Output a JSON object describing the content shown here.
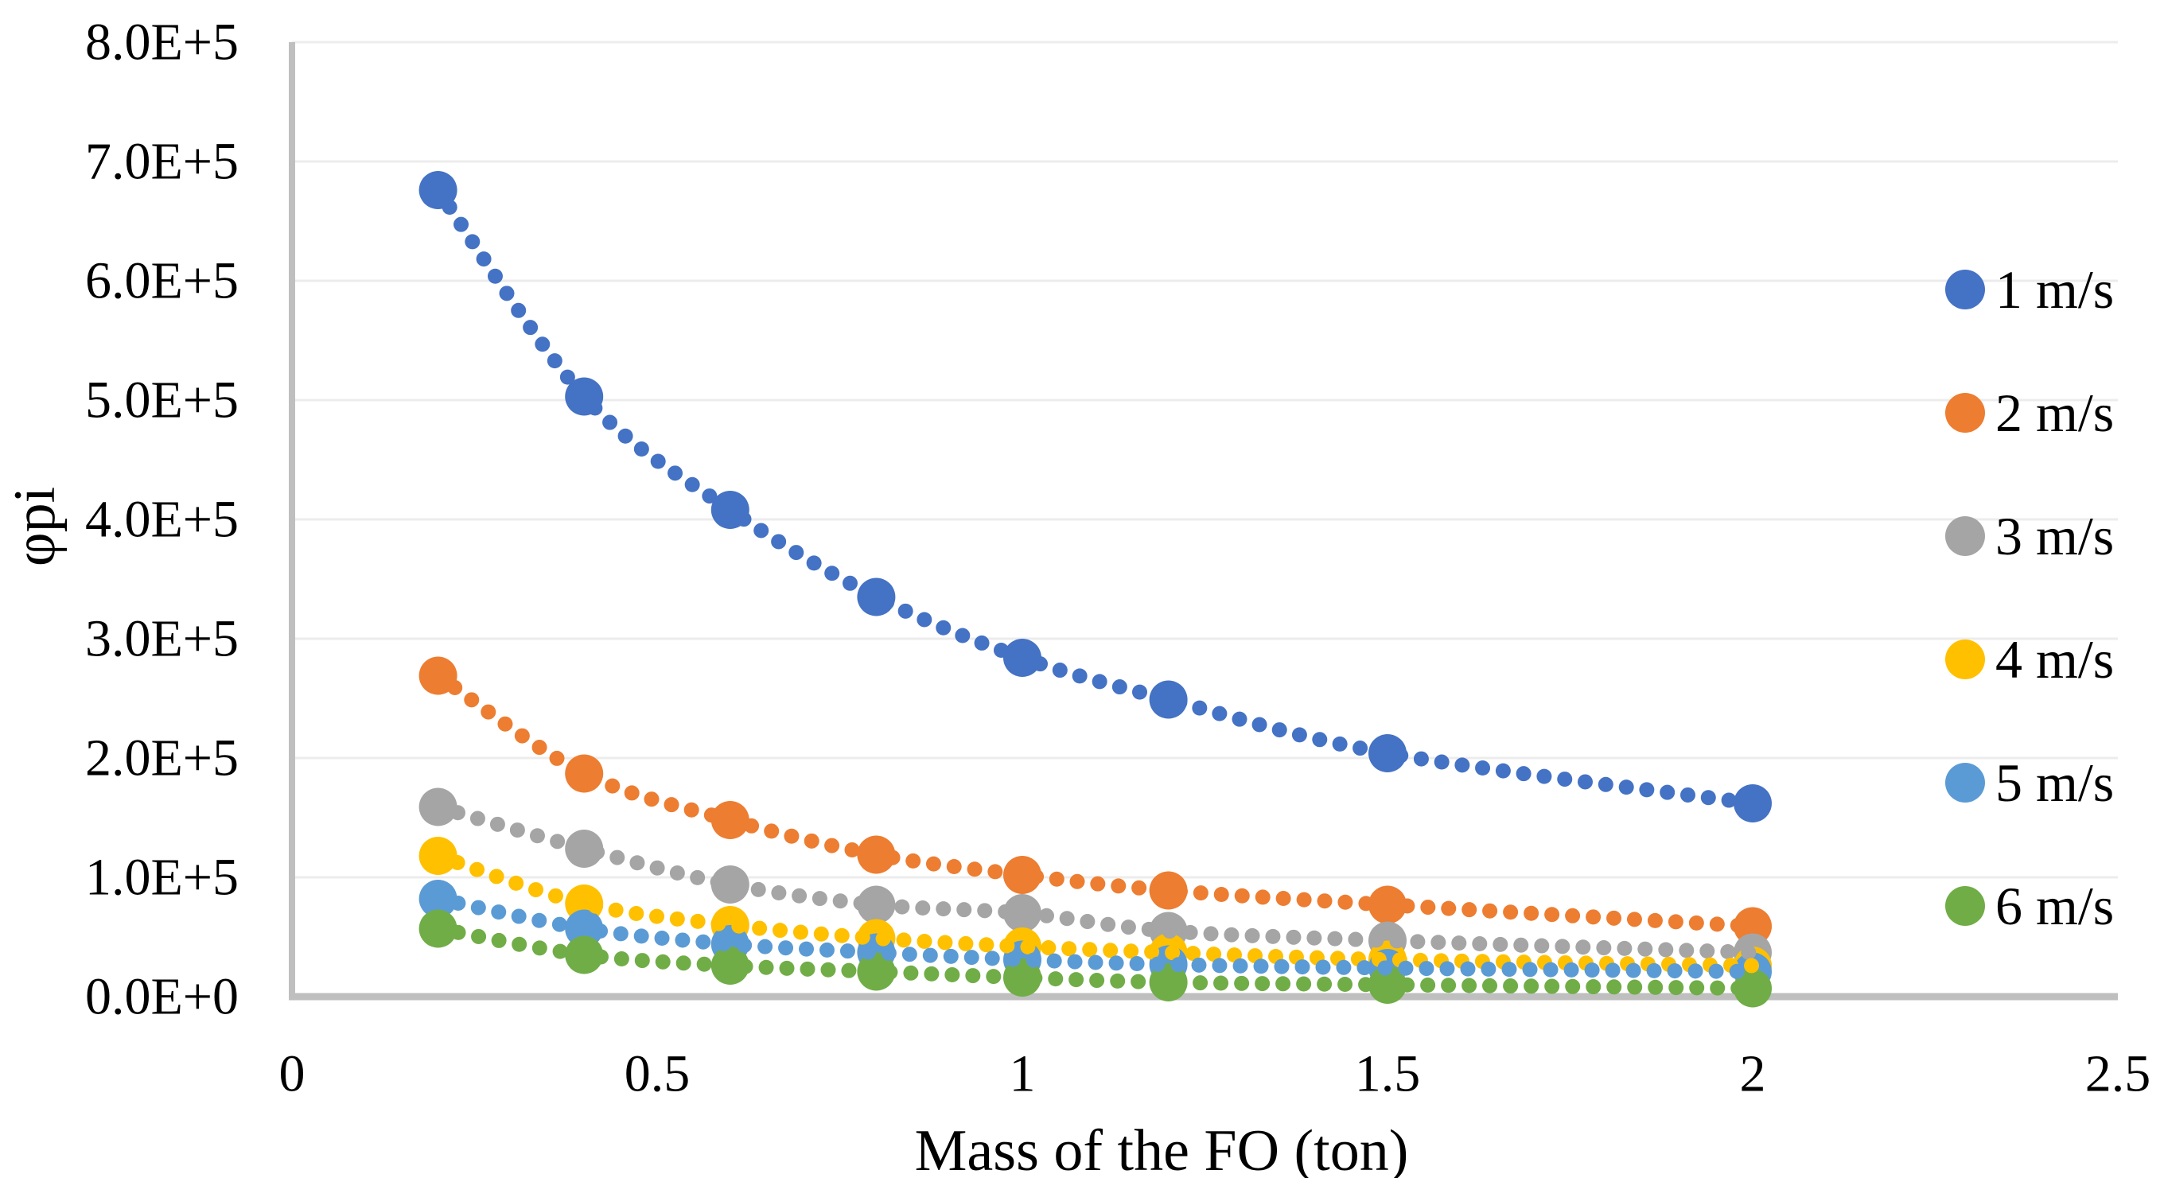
{
  "chart_data": {
    "type": "scatter",
    "title": "",
    "xlabel": "Mass of the FO (ton)",
    "ylabel": "φpi",
    "xlim": [
      0,
      2.5
    ],
    "ylim": [
      0,
      800000
    ],
    "grid": "horizontal",
    "gridline_interval": 100000,
    "legend_position": "right",
    "marker_style": "filled circle with dotted power trendline",
    "x": [
      0.2,
      0.4,
      0.6,
      0.8,
      1.0,
      1.2,
      1.5,
      2.0
    ],
    "x_ticks": [
      "0",
      "0.5",
      "1",
      "1.5",
      "2",
      "2.5"
    ],
    "x_tick_values": [
      0,
      0.5,
      1,
      1.5,
      2,
      2.5
    ],
    "y_ticks": [
      "0.0E+0",
      "1.0E+5",
      "2.0E+5",
      "3.0E+5",
      "4.0E+5",
      "5.0E+5",
      "6.0E+5",
      "7.0E+5",
      "8.0E+5"
    ],
    "y_tick_values": [
      0,
      100000,
      200000,
      300000,
      400000,
      500000,
      600000,
      700000,
      800000
    ],
    "series": [
      {
        "name": "1 m/s",
        "color": "#4472C4",
        "values": [
          676000,
          503000,
          408000,
          335000,
          284000,
          249000,
          204000,
          162000
        ]
      },
      {
        "name": "2 m/s",
        "color": "#ED7D31",
        "values": [
          269000,
          187000,
          148000,
          119000,
          102000,
          89000,
          77000,
          59000
        ]
      },
      {
        "name": "3 m/s",
        "color": "#A5A5A5",
        "values": [
          159000,
          124000,
          94000,
          77000,
          70000,
          55000,
          47000,
          37000
        ]
      },
      {
        "name": "4 m/s",
        "color": "#FFC000",
        "values": [
          118000,
          78000,
          60000,
          49000,
          42000,
          37000,
          31000,
          26000
        ]
      },
      {
        "name": "5 m/s",
        "color": "#5B9BD5",
        "values": [
          82000,
          57000,
          44000,
          37000,
          31000,
          27000,
          24000,
          21000
        ]
      },
      {
        "name": "6 m/s",
        "color": "#70AD47",
        "values": [
          57000,
          35000,
          26000,
          21000,
          16000,
          12000,
          10000,
          7000
        ]
      }
    ]
  },
  "colors": {
    "background": "#FFFFFF",
    "axis_line": "#BFBFBF",
    "gridline": "#ECECEC",
    "text": "#000000"
  }
}
